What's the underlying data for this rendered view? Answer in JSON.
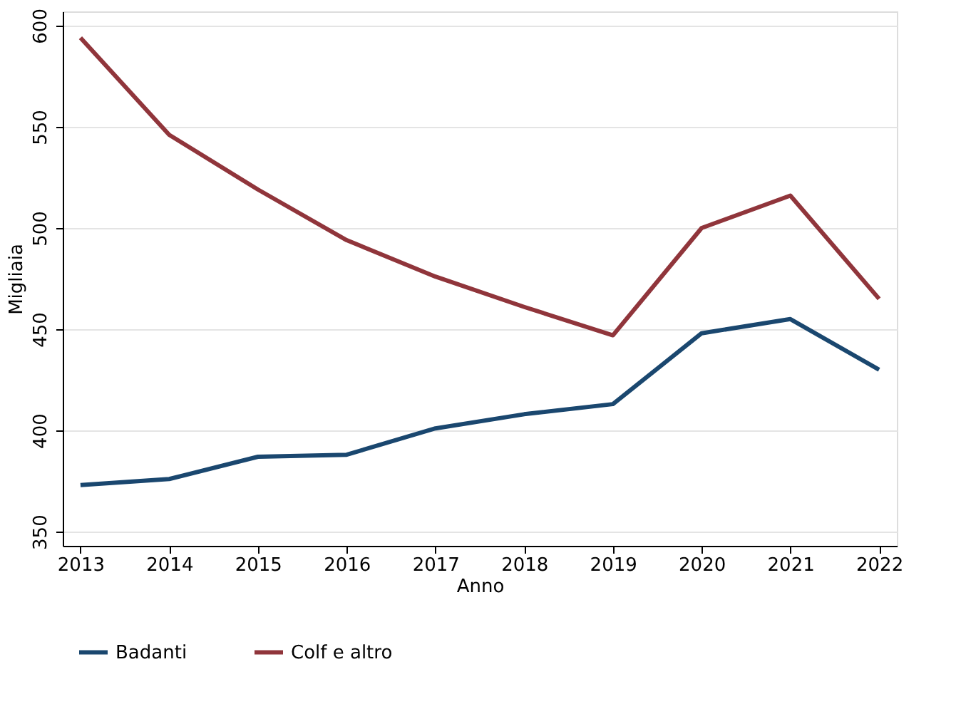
{
  "chart_data": {
    "type": "line",
    "xlabel": "Anno",
    "ylabel": "Migliaia",
    "x": [
      2013,
      2014,
      2015,
      2016,
      2017,
      2018,
      2019,
      2020,
      2021,
      2022
    ],
    "series": [
      {
        "name": "Badanti",
        "color": "#1a476f",
        "values": [
          373,
          376,
          387,
          388,
          401,
          408,
          413,
          448,
          455,
          430
        ]
      },
      {
        "name": "Colf e altro",
        "color": "#90353b",
        "values": [
          594,
          546,
          519,
          494,
          476,
          461,
          447,
          500,
          516,
          465
        ]
      }
    ],
    "xlim": [
      2012.8,
      2022.2
    ],
    "xticks": [
      2013,
      2014,
      2015,
      2016,
      2017,
      2018,
      2019,
      2020,
      2021,
      2022
    ],
    "ylim": [
      343,
      607
    ],
    "yticks": [
      350,
      400,
      450,
      500,
      550,
      600
    ],
    "grid": "y",
    "legend": "bottom",
    "marker": "none",
    "line_style": "solid"
  }
}
